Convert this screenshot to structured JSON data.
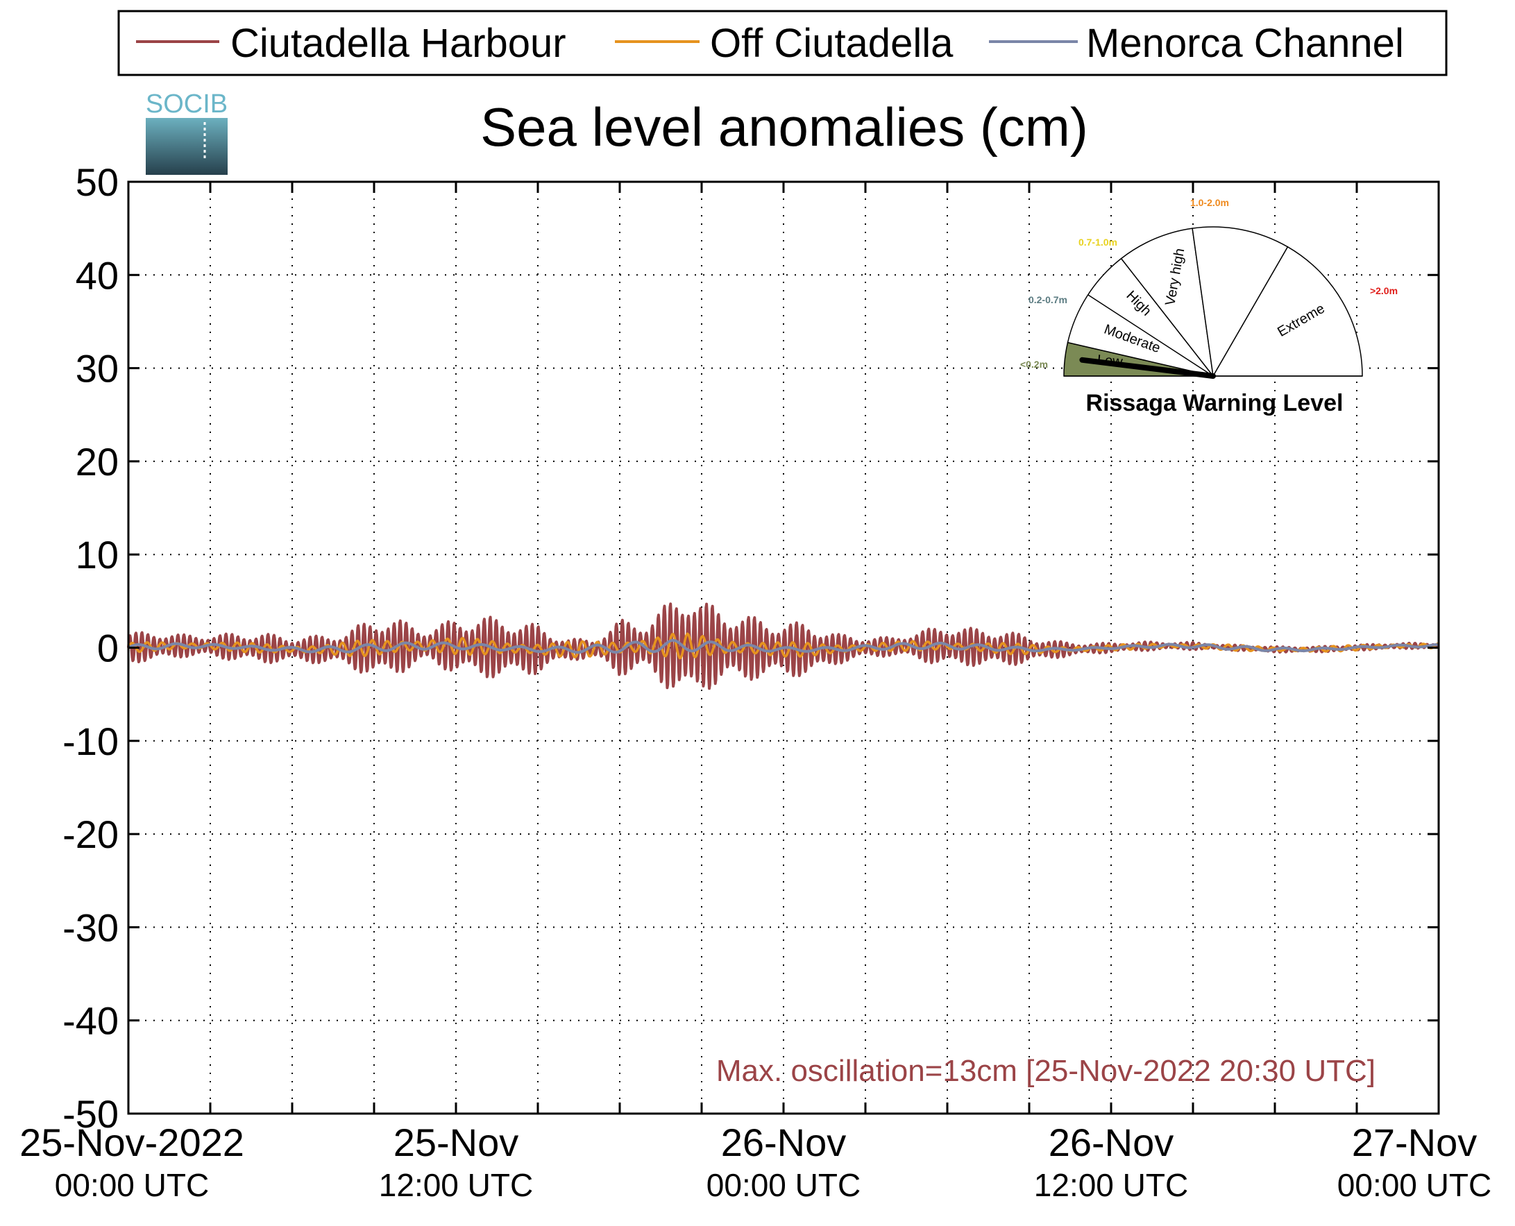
{
  "chart_data": {
    "type": "line",
    "title": "Sea level anomalies (cm)",
    "ylabel": "",
    "xlabel": "",
    "ylim": [
      -50,
      50
    ],
    "yticks": [
      50,
      40,
      30,
      20,
      10,
      0,
      -10,
      -20,
      -30,
      -40,
      -50
    ],
    "xlim_hours": [
      0,
      48
    ],
    "grid": true,
    "legend_placement": "top",
    "x_ticks": [
      {
        "hours": 0,
        "line1": "25-Nov-2022",
        "line2": "00:00 UTC"
      },
      {
        "hours": 12,
        "line1": "25-Nov",
        "line2": "12:00 UTC"
      },
      {
        "hours": 24,
        "line1": "26-Nov",
        "line2": "00:00 UTC"
      },
      {
        "hours": 36,
        "line1": "26-Nov",
        "line2": "12:00 UTC"
      },
      {
        "hours": 48,
        "line1": "27-Nov",
        "line2": "00:00 UTC"
      }
    ],
    "series": [
      {
        "name": "Ciutadella Harbour",
        "color": "#9b4447",
        "amplitude_envelope_cm": [
          [
            0,
            1.6
          ],
          [
            1,
            1.6
          ],
          [
            2,
            1.2
          ],
          [
            3,
            1.2
          ],
          [
            4,
            1.5
          ],
          [
            5,
            1.6
          ],
          [
            6,
            1.3
          ],
          [
            7,
            1.5
          ],
          [
            8,
            1.8
          ],
          [
            9,
            3.4
          ],
          [
            10,
            2.8
          ],
          [
            11,
            1.8
          ],
          [
            12,
            3.0
          ],
          [
            13,
            3.3
          ],
          [
            14,
            3.2
          ],
          [
            15,
            2.6
          ],
          [
            16,
            1.2
          ],
          [
            17,
            1.0
          ],
          [
            18,
            3.0
          ],
          [
            19,
            2.8
          ],
          [
            20,
            5.2
          ],
          [
            20.5,
            6.5
          ],
          [
            21,
            4.8
          ],
          [
            22,
            4.0
          ],
          [
            23,
            3.3
          ],
          [
            24,
            3.0
          ],
          [
            25,
            2.8
          ],
          [
            26,
            1.6
          ],
          [
            27,
            1.1
          ],
          [
            28,
            1.0
          ],
          [
            29,
            1.6
          ],
          [
            30,
            2.3
          ],
          [
            31,
            2.0
          ],
          [
            32,
            2.0
          ],
          [
            33,
            1.4
          ],
          [
            34,
            0.9
          ],
          [
            35,
            0.6
          ],
          [
            36,
            0.5
          ],
          [
            37,
            0.5
          ],
          [
            38,
            0.4
          ],
          [
            39,
            0.4
          ],
          [
            40,
            0.3
          ],
          [
            41,
            0.3
          ],
          [
            42,
            0.3
          ],
          [
            43,
            0.3
          ],
          [
            44,
            0.3
          ],
          [
            45,
            0.3
          ],
          [
            46,
            0.3
          ],
          [
            47,
            0.3
          ],
          [
            48,
            0.3
          ]
        ]
      },
      {
        "name": "Off Ciutadella",
        "color": "#e6931f",
        "amplitude_envelope_cm": [
          [
            0,
            0.5
          ],
          [
            6,
            0.5
          ],
          [
            9,
            0.9
          ],
          [
            12,
            0.9
          ],
          [
            15,
            0.8
          ],
          [
            18,
            0.9
          ],
          [
            20,
            1.4
          ],
          [
            21,
            1.2
          ],
          [
            24,
            0.8
          ],
          [
            28,
            0.5
          ],
          [
            32,
            0.6
          ],
          [
            36,
            0.3
          ],
          [
            48,
            0.3
          ]
        ]
      },
      {
        "name": "Menorca Channel",
        "color": "#7b86a8",
        "amplitude_envelope_cm": [
          [
            0,
            0.3
          ],
          [
            12,
            0.4
          ],
          [
            20,
            0.6
          ],
          [
            24,
            0.4
          ],
          [
            36,
            0.2
          ],
          [
            48,
            0.2
          ]
        ]
      }
    ],
    "annotation": "Max. oscillation=13cm [25-Nov-2022 20:30 UTC]"
  },
  "logo": {
    "text": "SOCIB"
  },
  "gauge": {
    "title": "Rissaga Warning Level",
    "needle_level": "Low",
    "sectors": [
      {
        "label": "Low",
        "range": "<0.2m",
        "range_color": "#7b8a55",
        "fill": "#7b8a55"
      },
      {
        "label": "Moderate",
        "range": "0.2-0.7m",
        "range_color": "#5c7c82",
        "fill": "#ffffff"
      },
      {
        "label": "High",
        "range": "0.7-1.0m",
        "range_color": "#e8d21f",
        "fill": "#ffffff"
      },
      {
        "label": "Very high",
        "range": "1.0-2.0m",
        "range_color": "#ef8a1e",
        "fill": "#ffffff"
      },
      {
        "label": "Extreme",
        "range": ">2.0m",
        "range_color": "#e0201c",
        "fill": "#ffffff"
      }
    ]
  }
}
